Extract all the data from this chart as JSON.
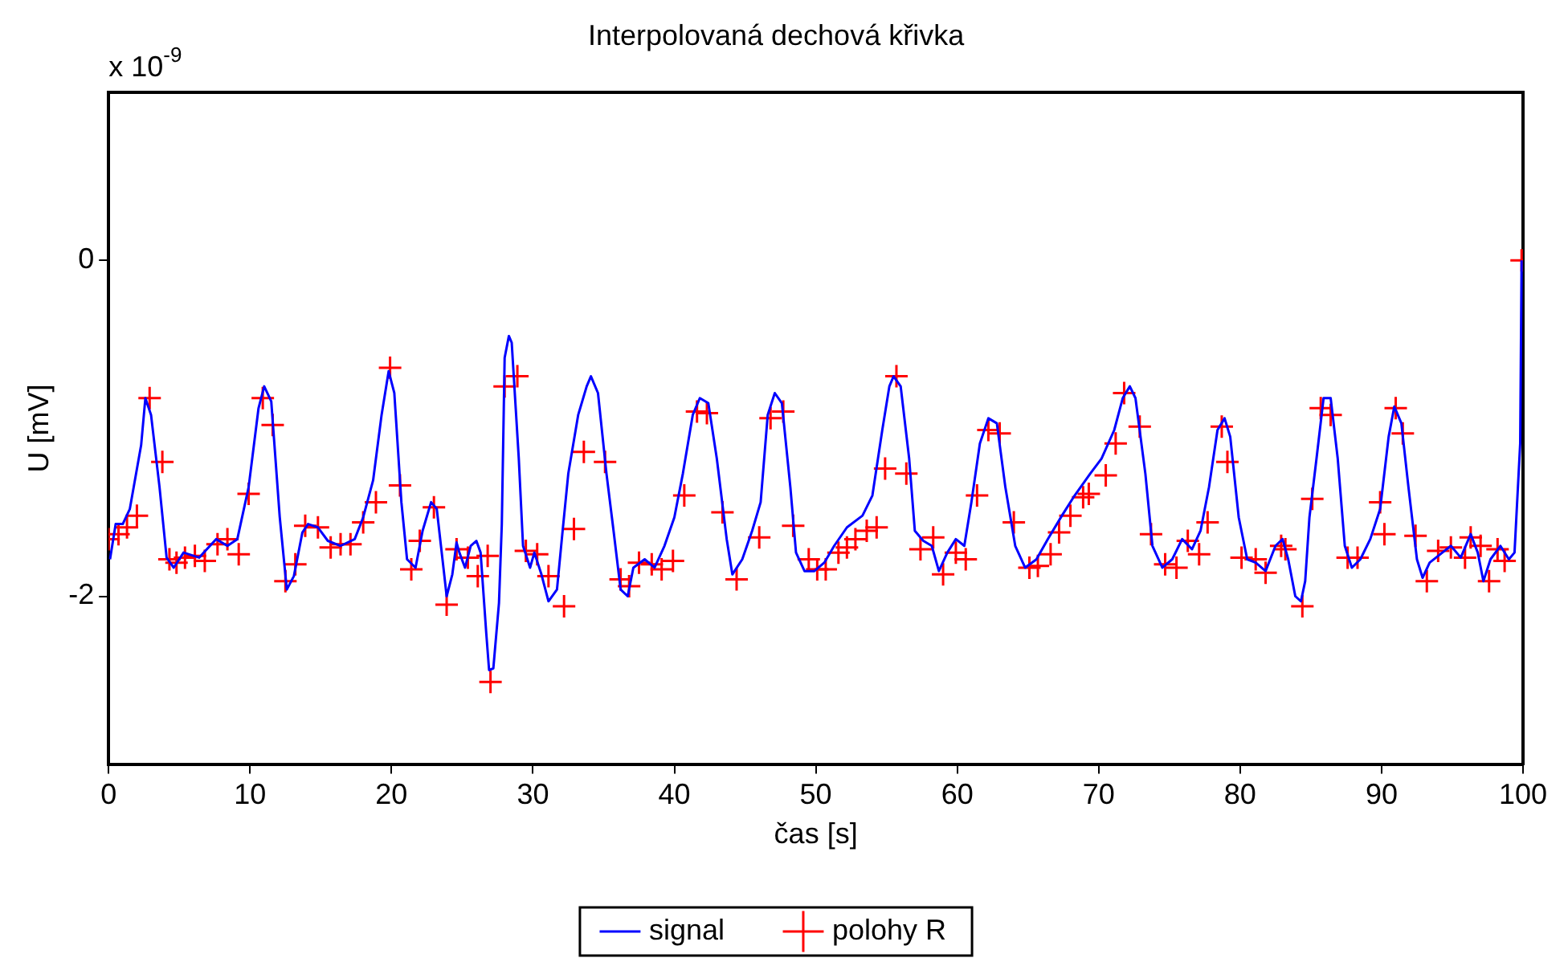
{
  "chart_data": {
    "type": "line",
    "title": "Interpolovaná dechová křivka",
    "xlabel": "čas [s]",
    "ylabel": "U [mV]",
    "annotations": [
      "x 10$^{-9}$"
    ],
    "xlim": [
      0,
      100
    ],
    "xticks": [
      0,
      10,
      20,
      30,
      40,
      50,
      60,
      70,
      80,
      90,
      100
    ],
    "ylim": [
      -3,
      1
    ],
    "yticks": [
      -2,
      0
    ],
    "grid": false,
    "legend": "bottom",
    "series": [
      {
        "name": "signal",
        "color": "#0000ff",
        "marker": "none",
        "line_style": "solid",
        "x": [
          0.1,
          0.5,
          1.0,
          1.5,
          2.3,
          2.6,
          3.0,
          3.6,
          4.1,
          4.6,
          5.3,
          6.4,
          7.6,
          8.4,
          9.1,
          9.9,
          10.6,
          11.0,
          11.5,
          12.1,
          12.6,
          13.1,
          13.7,
          14.1,
          14.8,
          15.5,
          16.4,
          17.4,
          18.0,
          18.7,
          19.3,
          19.8,
          20.2,
          20.7,
          21.1,
          21.7,
          22.2,
          22.8,
          23.2,
          23.7,
          23.9,
          24.3,
          24.6,
          24.8,
          25.2,
          25.6,
          26.0,
          26.3,
          26.7,
          26.9,
          27.2,
          27.6,
          27.8,
          28.0,
          28.3,
          28.5,
          29.0,
          29.3,
          29.8,
          30.1,
          30.6,
          31.1,
          31.7,
          32.1,
          32.5,
          33.2,
          33.8,
          34.1,
          34.6,
          35.2,
          35.7,
          36.2,
          36.7,
          37.1,
          37.9,
          38.6,
          39.3,
          40.0,
          40.6,
          41.3,
          41.8,
          42.4,
          43.0,
          43.7,
          44.1,
          44.8,
          45.5,
          46.1,
          46.6,
          47.1,
          47.6,
          48.2,
          48.6,
          49.2,
          49.9,
          50.6,
          51.3,
          52.2,
          53.3,
          54.0,
          54.7,
          55.2,
          55.5,
          56.0,
          56.6,
          57.0,
          57.6,
          58.2,
          58.7,
          59.3,
          59.9,
          60.5,
          61.0,
          61.6,
          62.2,
          62.8,
          63.4,
          64.1,
          64.8,
          65.6,
          66.4,
          67.4,
          68.3,
          69.4,
          70.2,
          71.1,
          71.7,
          72.2,
          72.6,
          73.3,
          73.8,
          74.5,
          75.2,
          75.9,
          76.6,
          77.2,
          77.8,
          78.4,
          78.9,
          79.3,
          79.9,
          80.5,
          81.1,
          81.8,
          82.5,
          83.0,
          83.4,
          83.9,
          84.3,
          84.6,
          84.9,
          85.4,
          85.9,
          86.4,
          86.9,
          87.4,
          87.9,
          88.5,
          89.2,
          89.9,
          90.5,
          90.9,
          91.4,
          91.9,
          92.5,
          92.9,
          93.4,
          94.3,
          94.9,
          95.6,
          96.3,
          96.8,
          97.2,
          97.7,
          98.4,
          99.0,
          99.4,
          99.8,
          99.9
        ],
        "values": [
          -1.78,
          -1.57,
          -1.57,
          -1.48,
          -1.1,
          -0.82,
          -0.92,
          -1.35,
          -1.77,
          -1.83,
          -1.74,
          -1.77,
          -1.66,
          -1.7,
          -1.66,
          -1.35,
          -0.88,
          -0.75,
          -0.84,
          -1.53,
          -1.96,
          -1.88,
          -1.62,
          -1.57,
          -1.59,
          -1.67,
          -1.7,
          -1.66,
          -1.53,
          -1.31,
          -0.92,
          -0.66,
          -0.79,
          -1.44,
          -1.78,
          -1.83,
          -1.61,
          -1.44,
          -1.48,
          -1.85,
          -2.0,
          -1.87,
          -1.68,
          -1.74,
          -1.83,
          -1.7,
          -1.67,
          -1.74,
          -2.22,
          -2.44,
          -2.43,
          -2.04,
          -1.57,
          -0.58,
          -0.45,
          -0.49,
          -1.18,
          -1.7,
          -1.83,
          -1.74,
          -1.87,
          -2.03,
          -1.96,
          -1.61,
          -1.27,
          -0.92,
          -0.75,
          -0.69,
          -0.79,
          -1.27,
          -1.61,
          -1.96,
          -2.0,
          -1.83,
          -1.78,
          -1.83,
          -1.7,
          -1.53,
          -1.27,
          -0.92,
          -0.82,
          -0.85,
          -1.18,
          -1.66,
          -1.87,
          -1.78,
          -1.61,
          -1.44,
          -0.92,
          -0.79,
          -0.85,
          -1.35,
          -1.74,
          -1.85,
          -1.85,
          -1.8,
          -1.7,
          -1.59,
          -1.52,
          -1.4,
          -1.01,
          -0.75,
          -0.69,
          -0.75,
          -1.18,
          -1.61,
          -1.67,
          -1.7,
          -1.85,
          -1.74,
          -1.66,
          -1.7,
          -1.44,
          -1.09,
          -0.94,
          -0.97,
          -1.35,
          -1.7,
          -1.83,
          -1.78,
          -1.66,
          -1.52,
          -1.4,
          -1.27,
          -1.18,
          -1.01,
          -0.82,
          -0.75,
          -0.82,
          -1.27,
          -1.7,
          -1.83,
          -1.78,
          -1.66,
          -1.72,
          -1.61,
          -1.35,
          -1.01,
          -0.94,
          -1.05,
          -1.53,
          -1.78,
          -1.8,
          -1.85,
          -1.7,
          -1.66,
          -1.78,
          -2.0,
          -2.03,
          -1.91,
          -1.53,
          -1.18,
          -0.82,
          -0.82,
          -1.18,
          -1.7,
          -1.83,
          -1.78,
          -1.66,
          -1.48,
          -1.05,
          -0.87,
          -0.97,
          -1.35,
          -1.78,
          -1.89,
          -1.8,
          -1.74,
          -1.7,
          -1.77,
          -1.63,
          -1.74,
          -1.91,
          -1.78,
          -1.7,
          -1.78,
          -1.74,
          -1.09,
          0.0
        ]
      },
      {
        "name": "polohy R",
        "type": "scatter",
        "color": "#ff0000",
        "marker": "cross",
        "x": [
          0,
          0.7,
          1.3,
          2.0,
          2.9,
          3.8,
          4.3,
          4.8,
          5.4,
          6.1,
          6.8,
          7.7,
          8.4,
          9.2,
          9.9,
          10.9,
          11.6,
          12.5,
          13.2,
          13.9,
          14.8,
          15.7,
          16.4,
          17.1,
          18.0,
          18.9,
          19.9,
          20.6,
          21.4,
          22.0,
          23.0,
          23.9,
          24.6,
          25.4,
          26.1,
          26.8,
          27.0,
          28.0,
          28.9,
          29.5,
          30.3,
          31.1,
          32.2,
          32.9,
          33.6,
          35.1,
          36.2,
          36.8,
          37.5,
          38.4,
          39.1,
          39.9,
          40.7,
          41.6,
          42.3,
          43.4,
          44.4,
          46.0,
          46.8,
          47.7,
          48.4,
          49.5,
          50.1,
          50.7,
          51.6,
          52.2,
          52.8,
          53.6,
          54.3,
          54.9,
          55.7,
          56.4,
          57.4,
          58.3,
          59.0,
          59.9,
          60.6,
          61.4,
          62.2,
          63.0,
          64.0,
          65.1,
          65.7,
          66.6,
          67.2,
          68.0,
          68.9,
          69.3,
          70.5,
          71.2,
          71.8,
          72.9,
          73.7,
          74.7,
          75.5,
          76.3,
          77.1,
          77.7,
          78.7,
          79.1,
          80.1,
          81.1,
          81.8,
          82.9,
          83.2,
          84.4,
          85.1,
          85.7,
          86.4,
          87.6,
          88.3,
          89.9,
          90.2,
          91.0,
          91.5,
          92.4,
          93.2,
          94.0,
          94.9,
          95.9,
          96.3,
          97.0,
          97.6,
          98.2,
          98.7,
          99.9
        ],
        "values": [
          -1.66,
          -1.63,
          -1.59,
          -1.52,
          -0.82,
          -1.2,
          -1.78,
          -1.8,
          -1.77,
          -1.76,
          -1.79,
          -1.69,
          -1.66,
          -1.75,
          -1.39,
          -0.82,
          -0.98,
          -1.91,
          -1.81,
          -1.58,
          -1.59,
          -1.71,
          -1.69,
          -1.69,
          -1.56,
          -1.44,
          -0.64,
          -1.34,
          -1.84,
          -1.67,
          -1.47,
          -2.05,
          -1.72,
          -1.77,
          -1.88,
          -1.76,
          -2.51,
          -0.75,
          -0.69,
          -1.73,
          -1.75,
          -1.88,
          -2.06,
          -1.6,
          -1.14,
          -1.2,
          -1.9,
          -1.94,
          -1.8,
          -1.81,
          -1.84,
          -1.79,
          -1.4,
          -0.9,
          -0.91,
          -1.5,
          -1.9,
          -1.65,
          -0.94,
          -0.9,
          -1.58,
          -1.78,
          -1.84,
          -1.84,
          -1.74,
          -1.71,
          -1.66,
          -1.61,
          -1.59,
          -1.24,
          -0.69,
          -1.27,
          -1.72,
          -1.65,
          -1.87,
          -1.74,
          -1.78,
          -1.4,
          -1.01,
          -1.03,
          -1.56,
          -1.83,
          -1.82,
          -1.75,
          -1.62,
          -1.52,
          -1.41,
          -1.39,
          -1.28,
          -1.09,
          -0.79,
          -0.99,
          -1.63,
          -1.81,
          -1.83,
          -1.67,
          -1.75,
          -1.56,
          -0.99,
          -1.2,
          -1.77,
          -1.78,
          -1.86,
          -1.7,
          -1.72,
          -2.06,
          -1.42,
          -0.88,
          -0.92,
          -1.77,
          -1.77,
          -1.44,
          -1.63,
          -0.88,
          -1.03,
          -1.64,
          -1.91,
          -1.73,
          -1.71,
          -1.77,
          -1.65,
          -1.7,
          -1.91,
          -1.72,
          -1.79,
          0.0
        ]
      }
    ]
  }
}
